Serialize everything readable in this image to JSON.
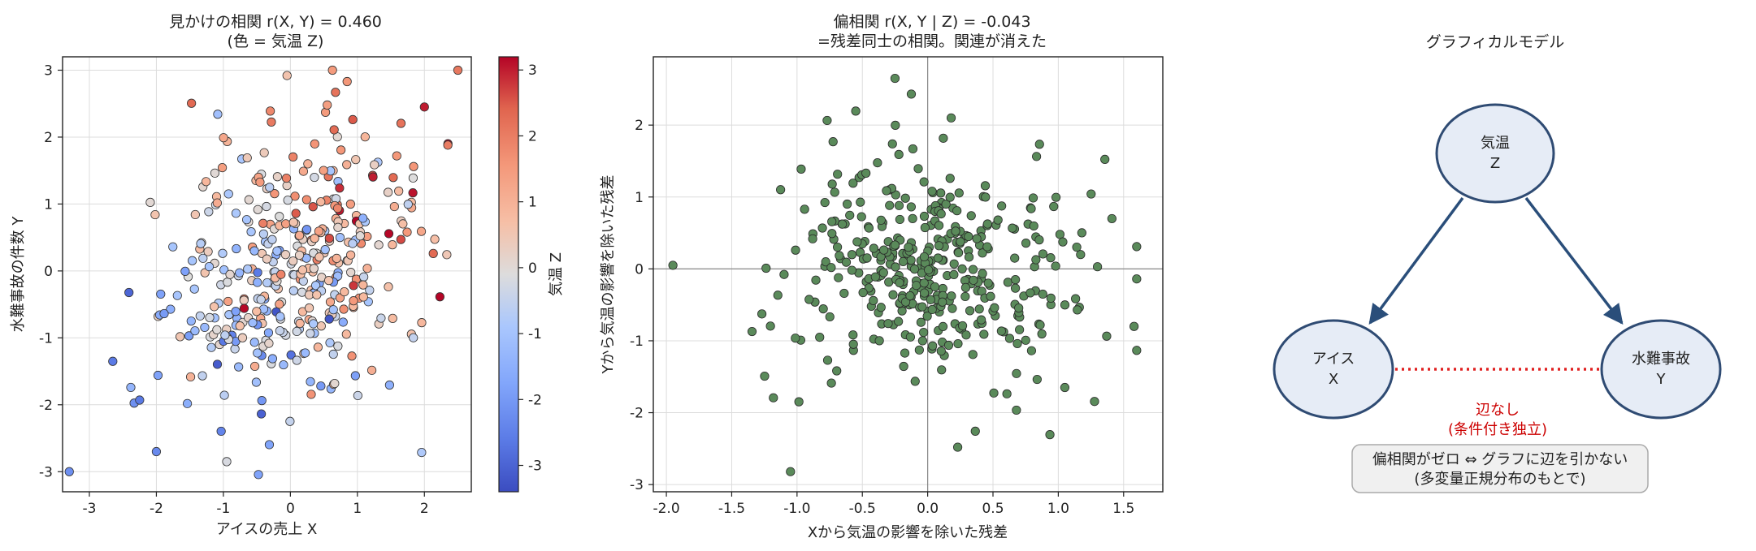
{
  "panels": {
    "left": {
      "title_line1": "見かけの相関 r(X, Y) = 0.460",
      "title_line2": "(色 = 気温 Z)",
      "xlabel": "アイスの売上 X",
      "ylabel": "水難事故の件数 Y",
      "colorbar_label": "気温 Z"
    },
    "middle": {
      "title_line1": "偏相関 r(X, Y | Z) = -0.043",
      "title_line2": "=残差同士の相関。関連が消えた",
      "xlabel": "Xから気温の影響を除いた残差",
      "ylabel": "Yから気温の影響を除いた残差"
    },
    "right": {
      "title": "グラフィカルモデル",
      "nodes": [
        {
          "id": "z",
          "line1": "気温",
          "line2": "Z"
        },
        {
          "id": "x",
          "line1": "アイス",
          "line2": "X"
        },
        {
          "id": "y",
          "line1": "水難事故",
          "line2": "Y"
        }
      ],
      "no_edge_line1": "辺なし",
      "no_edge_line2": "(条件付き独立)",
      "note_line1": "偏相関がゼロ ⇔ グラフに辺を引かない",
      "note_line2": "(多変量正規分布のもとで)"
    }
  },
  "colors": {
    "node_fill": "#e6ecf6",
    "node_stroke": "#2f4b73",
    "arrow": "#2a4e7a",
    "no_edge": "#e02020",
    "no_edge_text": "#cc0000",
    "residual_point": "#5a8a5a",
    "note_bg": "#f0f0f0"
  },
  "chart_data": [
    {
      "type": "scatter",
      "xlim": [
        -3.4,
        2.7
      ],
      "ylim": [
        -3.3,
        3.2
      ],
      "xticks": [
        -3,
        -2,
        -1,
        0,
        1,
        2
      ],
      "yticks": [
        -3,
        -2,
        -1,
        0,
        1,
        2,
        3
      ],
      "color_variable_range": [
        -3.4,
        3.2
      ],
      "colorbar_ticks": [
        -3,
        -2,
        -1,
        0,
        1,
        2,
        3
      ],
      "colormap": "coolwarm",
      "grid": true,
      "n_points": 400,
      "pearson_r": 0.46,
      "highlighted_points": [
        {
          "x": -3.3,
          "y": -3.0,
          "z": -2.2
        },
        {
          "x": 2.0,
          "y": 2.45,
          "z": 3.0
        },
        {
          "x": -0.05,
          "y": 2.92,
          "z": 0.6
        },
        {
          "x": -2.25,
          "y": -1.93,
          "z": -2.6
        },
        {
          "x": -2.0,
          "y": -2.7,
          "z": -2.3
        },
        {
          "x": -0.95,
          "y": -2.85,
          "z": -0.2
        },
        {
          "x": 0.55,
          "y": 2.48,
          "z": 1.4
        },
        {
          "x": 2.35,
          "y": 1.88,
          "z": 2.0
        }
      ]
    },
    {
      "type": "scatter",
      "xlim": [
        -2.1,
        1.8
      ],
      "ylim": [
        -3.1,
        2.95
      ],
      "xticks": [
        -2.0,
        -1.5,
        -1.0,
        -0.5,
        0.0,
        0.5,
        1.0,
        1.5
      ],
      "yticks": [
        -3,
        -2,
        -1,
        0,
        1,
        2
      ],
      "grid": true,
      "reference_lines": {
        "x": 0,
        "y": 0
      },
      "n_points": 400,
      "pearson_r": -0.043,
      "highlighted_points": [
        {
          "x": -0.25,
          "y": 2.65
        },
        {
          "x": -1.95,
          "y": 0.05
        },
        {
          "x": -1.05,
          "y": -2.82
        },
        {
          "x": 0.23,
          "y": -2.48
        },
        {
          "x": 1.58,
          "y": -0.8
        },
        {
          "x": 1.3,
          "y": 0.03
        },
        {
          "x": 0.18,
          "y": 2.1
        },
        {
          "x": 1.05,
          "y": -1.65
        }
      ]
    }
  ]
}
